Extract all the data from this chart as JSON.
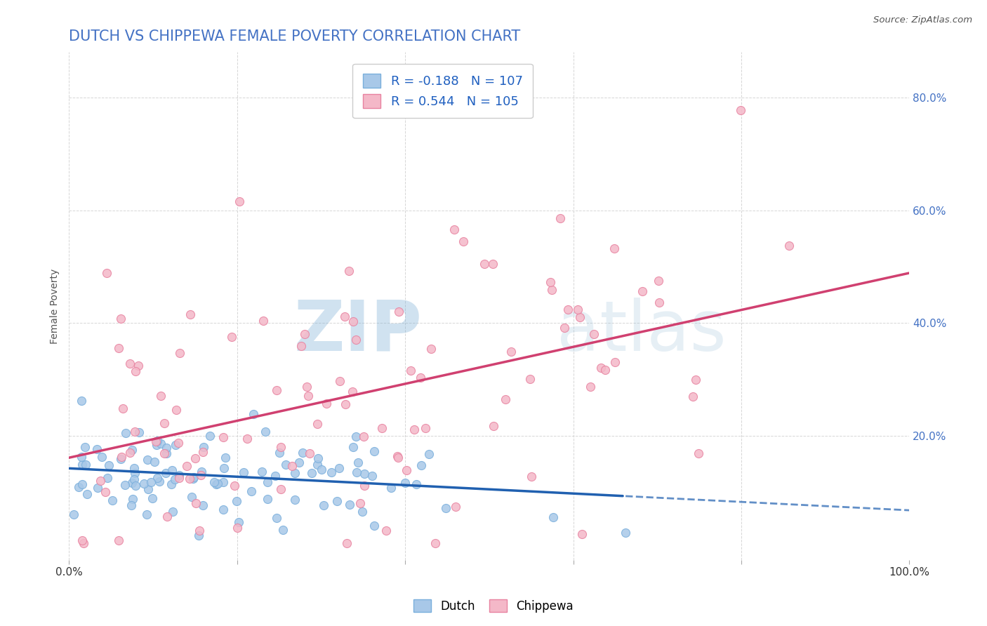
{
  "title": "DUTCH VS CHIPPEWA FEMALE POVERTY CORRELATION CHART",
  "source": "Source: ZipAtlas.com",
  "ylabel": "Female Poverty",
  "xlim": [
    0,
    1.0
  ],
  "ylim": [
    -0.02,
    0.88
  ],
  "xtick_labels": [
    "0.0%",
    "",
    "",
    "",
    "",
    "100.0%"
  ],
  "xtick_vals": [
    0,
    0.2,
    0.4,
    0.6,
    0.8,
    1.0
  ],
  "ytick_labels_right": [
    "20.0%",
    "40.0%",
    "60.0%",
    "80.0%"
  ],
  "ytick_vals_right": [
    0.2,
    0.4,
    0.6,
    0.8
  ],
  "dutch_color": "#a8c8e8",
  "dutch_edge_color": "#7aafdc",
  "chippewa_color": "#f4b8c8",
  "chippewa_edge_color": "#e882a0",
  "dutch_line_color": "#2060b0",
  "chippewa_line_color": "#d04070",
  "dutch_R": -0.188,
  "dutch_N": 107,
  "chippewa_R": 0.544,
  "chippewa_N": 105,
  "background_color": "#ffffff",
  "grid_color": "#cccccc",
  "title_color": "#4472c4",
  "watermark_zip_color": "#8ab4d8",
  "watermark_atlas_color": "#b0c8e0",
  "legend_label_dutch": "Dutch",
  "legend_label_chippewa": "Chippewa",
  "legend_text_color": "#333333",
  "legend_value_color": "#2060c0",
  "source_color": "#555555",
  "yaxis_label_color": "#555555",
  "right_tick_color": "#4472c4"
}
